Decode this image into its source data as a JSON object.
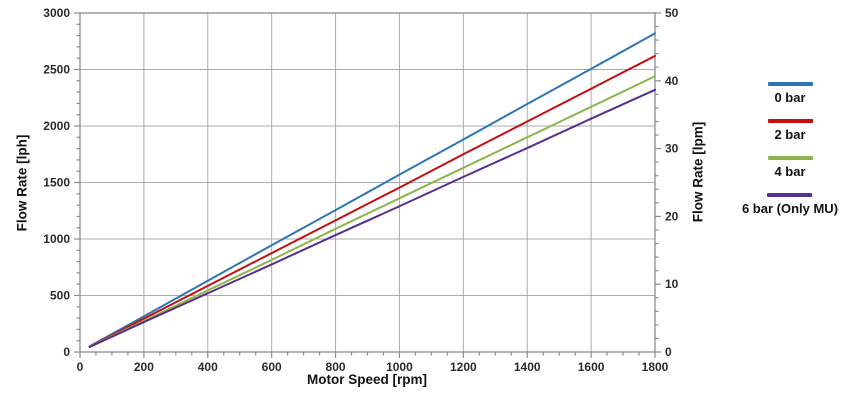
{
  "chart_data": {
    "type": "line",
    "title": "",
    "xlabel": "Motor Speed [rpm]",
    "ylabel_left": "Flow Rate [lph]",
    "ylabel_right": "Flow Rate [lpm]",
    "x_axis": {
      "min": 0,
      "max": 1800,
      "ticks": [
        0,
        200,
        400,
        600,
        800,
        1000,
        1200,
        1400,
        1600,
        1800
      ],
      "minor_step": 50
    },
    "y_axis_left": {
      "min": 0,
      "max": 3000,
      "ticks": [
        0,
        500,
        1000,
        1500,
        2000,
        2500,
        3000
      ],
      "minor_step": 100
    },
    "y_axis_right": {
      "min": 0,
      "max": 50,
      "ticks": [
        0,
        10,
        20,
        30,
        40,
        50
      ],
      "minor_step": 2
    },
    "grid": {
      "vertical": true,
      "horizontal": true
    },
    "legend_position": "right",
    "x": [
      30,
      200,
      400,
      600,
      800,
      1000,
      1200,
      1400,
      1600,
      1800
    ],
    "series": [
      {
        "name": "0 bar",
        "color": "#2e75b6",
        "values": [
          50,
          315,
          630,
          945,
          1255,
          1570,
          1880,
          2195,
          2505,
          2820
        ]
      },
      {
        "name": "2 bar",
        "color": "#c50e12",
        "values": [
          48,
          295,
          585,
          875,
          1165,
          1455,
          1750,
          2040,
          2330,
          2620
        ]
      },
      {
        "name": "4 bar",
        "color": "#8eb54d",
        "values": [
          46,
          275,
          545,
          815,
          1090,
          1360,
          1630,
          1900,
          2170,
          2440
        ]
      },
      {
        "name": "6 bar (Only MU)",
        "color": "#55308f",
        "values": [
          44,
          265,
          520,
          775,
          1035,
          1290,
          1550,
          1805,
          2065,
          2320
        ]
      }
    ],
    "colors": {
      "axis": "#8c8c8c",
      "grid": "#ababab",
      "tick_label": "#2b2b2b",
      "axis_title": "#121212",
      "background": "#ffffff"
    }
  }
}
